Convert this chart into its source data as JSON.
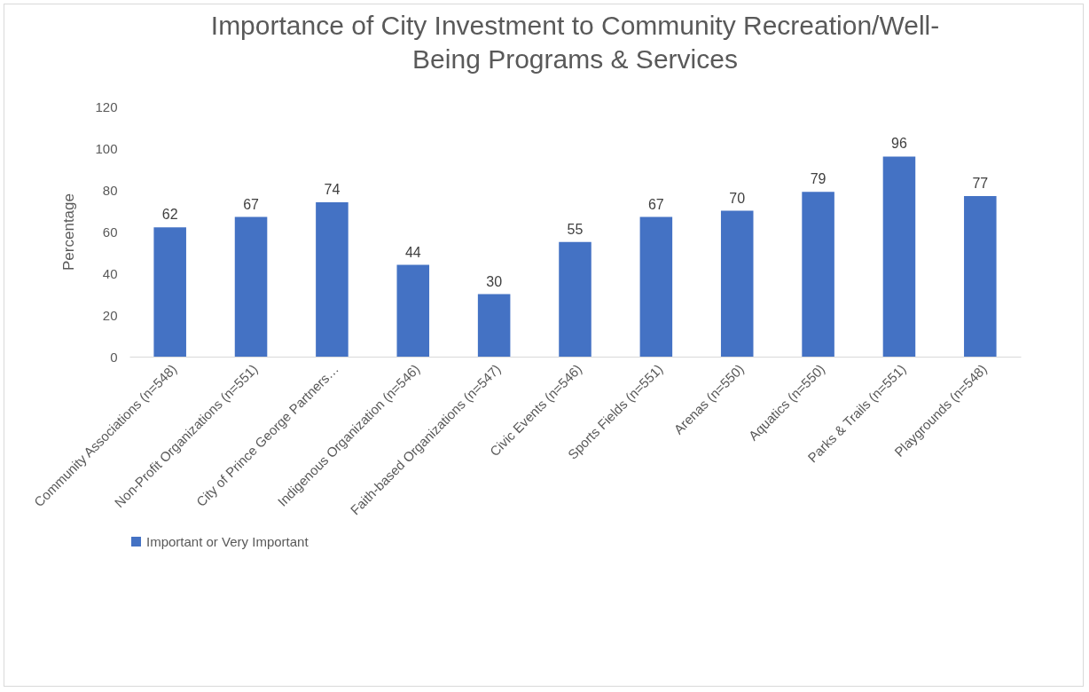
{
  "chart_data": {
    "type": "bar",
    "title": "Importance of City Investment to Community Recreation/Well-Being Programs & Services",
    "ylabel": "Percentage",
    "categories": [
      "Community Associations (n=548)",
      "Non-Profit Organizations (n=551)",
      "City of Prince George Partners…",
      "Indigenous Organization (n=546)",
      "Faith-based Organizations (n=547)",
      "Civic Events (n=546)",
      "Sports Fields (n=551)",
      "Arenas (n=550)",
      "Aquatics (n=550)",
      "Parks & Trails (n=551)",
      "Playgrounds (n=548)"
    ],
    "series": [
      {
        "name": "Important or Very Important",
        "color": "#4472c4",
        "values": [
          62,
          67,
          74,
          44,
          30,
          55,
          67,
          70,
          79,
          96,
          77
        ]
      }
    ],
    "ylim": [
      0,
      120
    ],
    "yticks": [
      0,
      20,
      40,
      60,
      80,
      100,
      120
    ],
    "grid": false,
    "legend": "bottom",
    "data_labels": true
  }
}
